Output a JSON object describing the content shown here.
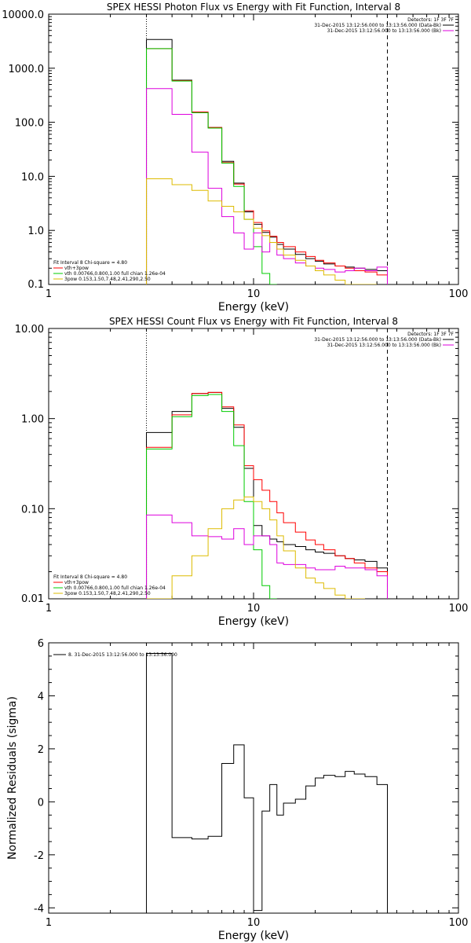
{
  "chart_data": [
    {
      "type": "line",
      "title": "SPEX HESSI Photon Flux vs Energy with Fit Function, Interval 8",
      "xlabel": "Energy (keV)",
      "ylabel": "",
      "xscale": "log",
      "yscale": "log",
      "xlim": [
        1,
        100
      ],
      "ylim": [
        0.1,
        10000
      ],
      "xticks": [
        "1",
        "10",
        "100"
      ],
      "yticks": [
        "0.1",
        "1.0",
        "10.0",
        "100.0",
        "1000.0",
        "10000.0"
      ],
      "ytick_values": [
        0.1,
        1,
        10,
        100,
        1000,
        10000
      ],
      "bin_edges": [
        3,
        4,
        5,
        6,
        7,
        8,
        9,
        10,
        11,
        12,
        13,
        14,
        16,
        18,
        20,
        22,
        25,
        28,
        31,
        35,
        40,
        45
      ],
      "series": [
        {
          "color": "#000000",
          "values": [
            3400,
            600,
            150,
            80,
            19,
            7.5,
            2.2,
            1.3,
            0.92,
            0.75,
            0.55,
            0.45,
            0.36,
            0.3,
            0.27,
            0.24,
            0.22,
            0.21,
            0.2,
            0.19,
            0.18
          ]
        },
        {
          "color": "#ff0000",
          "values": [
            2300,
            590,
            155,
            80,
            18,
            7.2,
            2.3,
            1.4,
            0.98,
            0.78,
            0.6,
            0.5,
            0.4,
            0.33,
            0.28,
            0.25,
            0.22,
            0.2,
            0.18,
            0.17,
            0.15
          ]
        },
        {
          "color": "#00cc00",
          "values": [
            2300,
            580,
            150,
            78,
            17.5,
            6.5,
            1.6,
            0.5,
            0.16,
            0.05
          ]
        },
        {
          "color": "#dd00dd",
          "values": [
            420,
            140,
            28,
            6,
            1.8,
            0.9,
            0.45,
            0.9,
            0.4,
            0.6,
            0.35,
            0.3,
            0.25,
            0.22,
            0.2,
            0.19,
            0.17,
            0.18,
            0.2,
            0.18,
            0.21
          ]
        },
        {
          "color": "#ddbb00",
          "values": [
            9,
            7,
            5.5,
            3.5,
            2.8,
            2.2,
            1.6,
            1.1,
            0.8,
            0.6,
            0.45,
            0.35,
            0.28,
            0.22,
            0.18,
            0.15,
            0.12,
            0.1,
            0.08,
            0.06
          ]
        }
      ],
      "vlines": [
        {
          "x": 3,
          "style": "dotted"
        },
        {
          "x": 45,
          "style": "dashed"
        }
      ],
      "legend_top": [
        "Detectors: 1F 3F 7F",
        "31-Dec-2015 13:12:56.000 to 13:13:56.000 (Data-Bk)",
        "31-Dec-2015 13:12:56.000 to 13:13:56.000 (Bk)"
      ],
      "legend_top_colors": [
        "",
        "#000000",
        "#dd00dd"
      ],
      "legend_bottom": [
        "Fit Interval 8   Chi-square = 4.80",
        "vth+3pow",
        "vth 0.00766,0.800,1.00  full chian 1.26e-04",
        "3pow 0.153,1.50,7.48,2.41,290,2.50"
      ],
      "legend_bottom_colors": [
        "",
        "#ff0000",
        "#00cc00",
        "#ddbb00"
      ]
    },
    {
      "type": "line",
      "title": "SPEX HESSI Count Flux vs Energy with Fit Function, Interval 8",
      "xlabel": "Energy (keV)",
      "ylabel": "",
      "xscale": "log",
      "yscale": "log",
      "xlim": [
        1,
        100
      ],
      "ylim": [
        0.01,
        10
      ],
      "xticks": [
        "1",
        "10",
        "100"
      ],
      "yticks": [
        "0.01",
        "0.10",
        "1.00",
        "10.00"
      ],
      "ytick_values": [
        0.01,
        0.1,
        1,
        10
      ],
      "bin_edges": [
        3,
        4,
        5,
        6,
        7,
        8,
        9,
        10,
        11,
        12,
        13,
        14,
        16,
        18,
        20,
        22,
        25,
        28,
        31,
        35,
        40,
        45
      ],
      "series": [
        {
          "color": "#000000",
          "values": [
            0.7,
            1.2,
            1.9,
            1.95,
            1.3,
            0.8,
            0.28,
            0.065,
            0.05,
            0.046,
            0.043,
            0.04,
            0.038,
            0.035,
            0.033,
            0.032,
            0.03,
            0.028,
            0.027,
            0.026,
            0.022
          ]
        },
        {
          "color": "#ff0000",
          "values": [
            0.48,
            1.1,
            1.9,
            1.95,
            1.35,
            0.85,
            0.3,
            0.21,
            0.16,
            0.12,
            0.09,
            0.07,
            0.055,
            0.045,
            0.04,
            0.035,
            0.03,
            0.028,
            0.025,
            0.022,
            0.02
          ]
        },
        {
          "color": "#00cc00",
          "values": [
            0.46,
            1.05,
            1.8,
            1.85,
            1.2,
            0.5,
            0.12,
            0.035,
            0.014,
            0.01
          ]
        },
        {
          "color": "#dd00dd",
          "values": [
            0.085,
            0.07,
            0.05,
            0.049,
            0.046,
            0.06,
            0.04,
            0.05,
            0.05,
            0.04,
            0.025,
            0.024,
            0.024,
            0.022,
            0.021,
            0.021,
            0.023,
            0.022,
            0.022,
            0.021,
            0.018
          ]
        },
        {
          "color": "#ddbb00",
          "values": [
            0.009,
            0.018,
            0.03,
            0.06,
            0.1,
            0.125,
            0.135,
            0.12,
            0.1,
            0.075,
            0.05,
            0.034,
            0.022,
            0.017,
            0.015,
            0.013,
            0.011,
            0.0095,
            0.0085
          ]
        }
      ],
      "vlines": [
        {
          "x": 3,
          "style": "dotted"
        },
        {
          "x": 45,
          "style": "dashed"
        }
      ],
      "legend_top": [
        "Detectors: 1F 3F 7F",
        "31-Dec-2015 13:12:56.000 to 13:13:56.000 (Data-Bk)",
        "31-Dec-2015 13:12:56.000 to 13:13:56.000 (Bk)"
      ],
      "legend_top_colors": [
        "",
        "#000000",
        "#dd00dd"
      ],
      "legend_bottom": [
        "Fit Interval 8   Chi-square = 4.80",
        "vth+3pow",
        "vth 0.00766,0.800,1.00  full chian 1.26e-04",
        "3pow 0.153,1.50,7.48,2.41,290,2.50"
      ],
      "legend_bottom_colors": [
        "",
        "#ff0000",
        "#00cc00",
        "#ddbb00"
      ]
    },
    {
      "type": "line",
      "title": "",
      "xlabel": "Energy (keV)",
      "ylabel": "Normalized Residuals (sigma)",
      "xscale": "log",
      "yscale": "linear",
      "xlim": [
        1,
        100
      ],
      "ylim": [
        -4.2,
        6
      ],
      "xticks": [
        "1",
        "10",
        "100"
      ],
      "yticks": [
        "-4",
        "-2",
        "0",
        "2",
        "4",
        "6"
      ],
      "ytick_values": [
        -4,
        -2,
        0,
        2,
        4,
        6
      ],
      "bin_edges": [
        3,
        4,
        5,
        6,
        7,
        8,
        9,
        10,
        11,
        12,
        13,
        14,
        16,
        18,
        20,
        22,
        25,
        28,
        31,
        35,
        40,
        45
      ],
      "series": [
        {
          "color": "#000000",
          "values": [
            5.6,
            -1.35,
            -1.4,
            -1.3,
            1.45,
            2.15,
            0.15,
            -4.1,
            -0.35,
            0.65,
            -0.5,
            -0.05,
            0.1,
            0.6,
            0.9,
            1.0,
            0.95,
            1.15,
            1.05,
            0.95,
            0.65
          ]
        }
      ],
      "vlines": [],
      "legend_top": [
        "8. 31-Dec-2015 13:12:56.000 to 13:13:56.000"
      ],
      "legend_top_colors": [
        "#000000"
      ],
      "legend_bottom": [],
      "legend_bottom_colors": []
    }
  ]
}
